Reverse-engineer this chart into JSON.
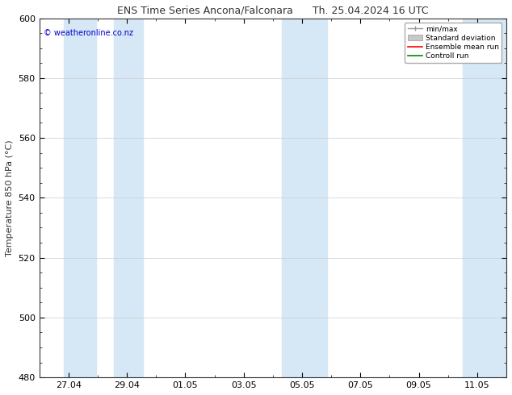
{
  "title_left": "ENS Time Series Ancona/Falconara",
  "title_right": "Th. 25.04.2024 16 UTC",
  "ylabel": "Temperature 850 hPa (°C)",
  "watermark": "© weatheronline.co.nz",
  "watermark_color": "#0000cc",
  "ylim": [
    480,
    600
  ],
  "yticks": [
    480,
    500,
    520,
    540,
    560,
    580,
    600
  ],
  "background_color": "#ffffff",
  "plot_bg_color": "#ffffff",
  "shade_color": "#d6e8f5",
  "x_tick_labels": [
    "27.04",
    "29.04",
    "01.05",
    "03.05",
    "05.05",
    "07.05",
    "09.05",
    "11.05"
  ],
  "legend_labels": [
    "min/max",
    "Standard deviation",
    "Ensemble mean run",
    "Controll run"
  ],
  "legend_colors": [
    "#aaaaaa",
    "#cccccc",
    "#ff0000",
    "#008000"
  ],
  "title_fontsize": 9,
  "tick_fontsize": 8,
  "ylabel_fontsize": 8,
  "watermark_fontsize": 7
}
